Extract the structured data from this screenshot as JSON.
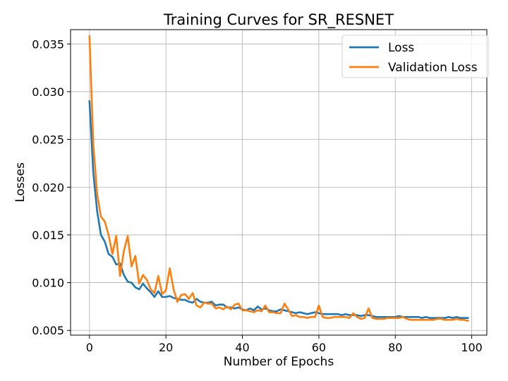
{
  "chart_data": {
    "type": "line",
    "title": "Training Curves for SR_RESNET",
    "xlabel": "Number of Epochs",
    "ylabel": "Losses",
    "xlim": [
      -4.95,
      103.95
    ],
    "ylim": [
      0.0045,
      0.0365
    ],
    "xticks": [
      0,
      20,
      40,
      60,
      80,
      100
    ],
    "yticks": [
      0.005,
      0.01,
      0.015,
      0.02,
      0.025,
      0.03,
      0.035
    ],
    "ytick_labels": [
      "0.005",
      "0.010",
      "0.015",
      "0.020",
      "0.025",
      "0.030",
      "0.035"
    ],
    "grid": true,
    "legend_position": "upper right",
    "series": [
      {
        "name": "Loss",
        "color": "#1f77b4",
        "values": [
          0.029,
          0.0215,
          0.0175,
          0.015,
          0.0143,
          0.013,
          0.0127,
          0.0119,
          0.012,
          0.0108,
          0.0101,
          0.01,
          0.0095,
          0.0093,
          0.0099,
          0.0094,
          0.009,
          0.0085,
          0.0091,
          0.0085,
          0.0085,
          0.0086,
          0.0084,
          0.0083,
          0.0082,
          0.0082,
          0.008,
          0.0079,
          0.0083,
          0.008,
          0.0079,
          0.0079,
          0.008,
          0.0076,
          0.0077,
          0.0077,
          0.0074,
          0.0074,
          0.0073,
          0.0074,
          0.0072,
          0.0071,
          0.0073,
          0.0071,
          0.0075,
          0.0072,
          0.0073,
          0.0071,
          0.007,
          0.007,
          0.0072,
          0.0071,
          0.007,
          0.0069,
          0.0068,
          0.0069,
          0.0068,
          0.0067,
          0.0068,
          0.0069,
          0.0068,
          0.0067,
          0.0067,
          0.0067,
          0.0067,
          0.0067,
          0.0066,
          0.0067,
          0.0066,
          0.0066,
          0.0066,
          0.0065,
          0.0066,
          0.0066,
          0.0065,
          0.0064,
          0.0064,
          0.0064,
          0.0064,
          0.0064,
          0.0064,
          0.0065,
          0.0064,
          0.0064,
          0.0064,
          0.0064,
          0.0064,
          0.0063,
          0.0064,
          0.0063,
          0.0063,
          0.0063,
          0.0063,
          0.0063,
          0.0064,
          0.0063,
          0.0064,
          0.0063,
          0.0063,
          0.0063
        ]
      },
      {
        "name": "Validation Loss",
        "color": "#ff7f0e",
        "values": [
          0.0358,
          0.0245,
          0.0193,
          0.0169,
          0.0164,
          0.015,
          0.013,
          0.0149,
          0.0107,
          0.0133,
          0.0149,
          0.0117,
          0.0128,
          0.0099,
          0.0108,
          0.0103,
          0.0093,
          0.0089,
          0.0107,
          0.0088,
          0.0092,
          0.0115,
          0.0093,
          0.008,
          0.0087,
          0.0088,
          0.0083,
          0.0089,
          0.0076,
          0.0074,
          0.0079,
          0.0078,
          0.0078,
          0.0073,
          0.0074,
          0.0072,
          0.0075,
          0.0072,
          0.0077,
          0.0078,
          0.0071,
          0.0071,
          0.007,
          0.0069,
          0.0071,
          0.007,
          0.0076,
          0.0069,
          0.0069,
          0.0068,
          0.0068,
          0.0078,
          0.0072,
          0.0065,
          0.0066,
          0.0064,
          0.0064,
          0.0063,
          0.0064,
          0.0064,
          0.0076,
          0.0064,
          0.0063,
          0.0063,
          0.0064,
          0.0064,
          0.0064,
          0.0064,
          0.0063,
          0.0068,
          0.0064,
          0.0062,
          0.0063,
          0.0073,
          0.0063,
          0.0062,
          0.0062,
          0.0062,
          0.0063,
          0.0063,
          0.0063,
          0.0063,
          0.0064,
          0.0062,
          0.0061,
          0.0061,
          0.0061,
          0.0061,
          0.0061,
          0.0061,
          0.0061,
          0.0062,
          0.0062,
          0.0061,
          0.0061,
          0.0061,
          0.0062,
          0.0061,
          0.0061,
          0.006
        ]
      }
    ]
  }
}
